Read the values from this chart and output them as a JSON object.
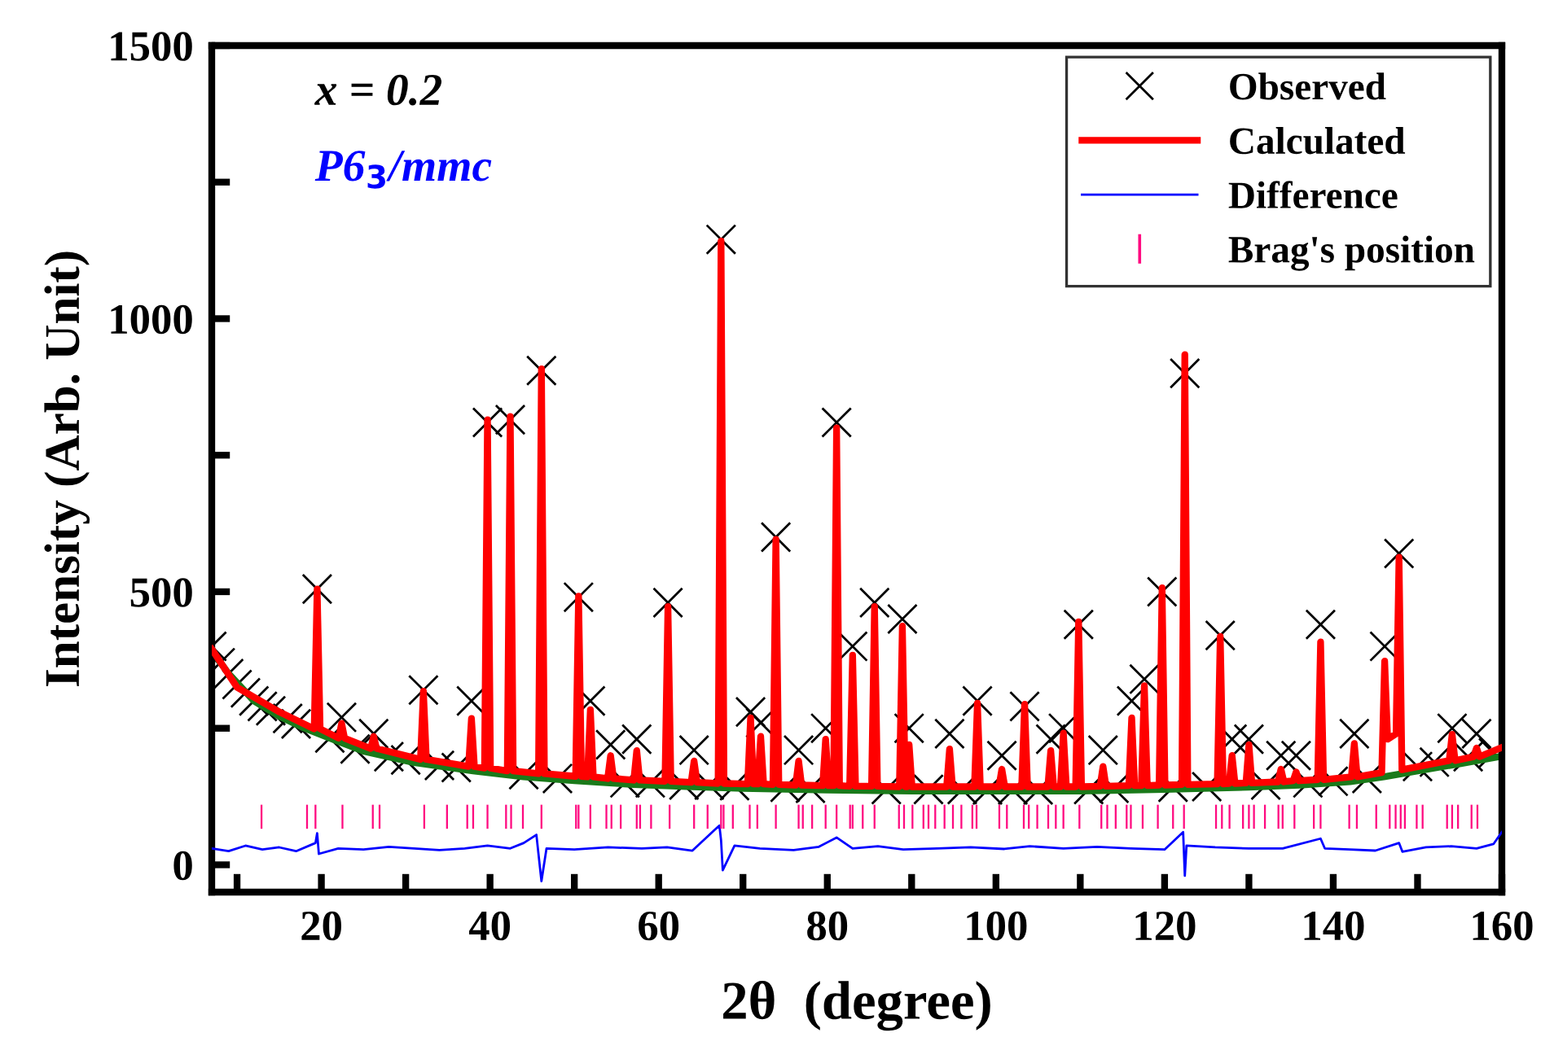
{
  "chart_data": {
    "type": "line",
    "xlabel": "2θ  (degree)",
    "ylabel": "Intensity (Arb. Unit)",
    "annotations": [
      "x = 0.2",
      "P6$_{3}$/mmc"
    ],
    "xlim": [
      7,
      160
    ],
    "ylim": [
      -50,
      1500
    ],
    "xticks": [
      {
        "value": 10,
        "label": null
      },
      20,
      {
        "value": 30,
        "label": null
      },
      40,
      {
        "value": 50,
        "label": null
      },
      60,
      {
        "value": 70,
        "label": null
      },
      80,
      {
        "value": 90,
        "label": null
      },
      100,
      {
        "value": 110,
        "label": null
      },
      120,
      {
        "value": 130,
        "label": null
      },
      140,
      {
        "value": 150,
        "label": null
      },
      160
    ],
    "yticks": [
      0,
      {
        "value": 250,
        "label": null
      },
      500,
      {
        "value": 750,
        "label": null
      },
      1000,
      {
        "value": 1250,
        "label": null
      },
      1500
    ],
    "legend": "top right",
    "grid": false,
    "series": [
      {
        "name": "Observed",
        "type": "scatter",
        "marker": "cross",
        "color": "#000000",
        "x": [
          7,
          8,
          9,
          10,
          11,
          12,
          13,
          14,
          16,
          17,
          19.5,
          21,
          22.4,
          24,
          26.2,
          28,
          30,
          32.1,
          34,
          36,
          37.8,
          39.7,
          42.4,
          44,
          46.1,
          48,
          50.5,
          51.9,
          54.3,
          56,
          57.4,
          59,
          61.1,
          63,
          64.2,
          66,
          67.4,
          69,
          70.9,
          72.1,
          73.9,
          75,
          76.6,
          78,
          79.8,
          81.1,
          83.0,
          85.6,
          87,
          88.9,
          89.7,
          92,
          94.5,
          96,
          97.8,
          99,
          100.7,
          102,
          103.4,
          105,
          106.5,
          108.0,
          109.8,
          111,
          112.7,
          114,
          116.1,
          117.6,
          119.7,
          121,
          122.4,
          125,
          126.6,
          128.0,
          130.0,
          132,
          133.8,
          135.6,
          137,
          138.5,
          140,
          142.5,
          144,
          146.1,
          147.8,
          150,
          152,
          154.1,
          156,
          157.0,
          159
        ],
        "values": [
          400,
          370,
          350,
          330,
          315,
          300,
          290,
          282,
          268,
          258,
          505,
          232,
          270,
          212,
          240,
          198,
          192,
          320,
          182,
          178,
          300,
          810,
          815,
          165,
          905,
          158,
          490,
          300,
          220,
          150,
          230,
          150,
          480,
          146,
          210,
          146,
          1145,
          145,
          280,
          260,
          600,
          142,
          210,
          140,
          250,
          810,
          400,
          480,
          138,
          450,
          250,
          138,
          240,
          138,
          300,
          137,
          200,
          137,
          290,
          137,
          230,
          250,
          440,
          138,
          210,
          140,
          300,
          340,
          500,
          142,
          900,
          143,
          420,
          230,
          230,
          146,
          200,
          200,
          150,
          440,
          153,
          240,
          158,
          400,
          570,
          180,
          188,
          250,
          198,
          240,
          205
        ]
      },
      {
        "name": "Calculated",
        "color": "#ff0000",
        "x": [
          7,
          10,
          15,
          19.15,
          19.5,
          19.85,
          22.05,
          22.4,
          22.75,
          25.85,
          26.2,
          26.55,
          31.75,
          32.1,
          32.45,
          37.45,
          37.8,
          38.15,
          39.35,
          39.7,
          40.05,
          42.05,
          42.4,
          42.75,
          45.75,
          46.1,
          46.45,
          50.15,
          50.5,
          50.85,
          51.55,
          51.9,
          52.25,
          53.95,
          54.3,
          54.65,
          57.05,
          57.4,
          57.75,
          60.75,
          61.1,
          61.45,
          63.85,
          64.2,
          64.55,
          67.05,
          67.4,
          67.75,
          70.55,
          70.9,
          71.25,
          71.75,
          72.1,
          72.45,
          73.55,
          73.9,
          74.25,
          76.25,
          76.6,
          76.95,
          79.45,
          79.8,
          80.15,
          80.75,
          81.1,
          81.45,
          82.65,
          83.0,
          83.35,
          85.25,
          85.6,
          85.95,
          88.55,
          88.9,
          89.25,
          89.45,
          89.7,
          90.05,
          94.15,
          94.5,
          94.85,
          97.45,
          97.8,
          98.15,
          100.35,
          100.7,
          101.05,
          103.05,
          103.4,
          103.75,
          106.15,
          106.5,
          106.85,
          107.65,
          108.0,
          108.35,
          109.45,
          109.8,
          110.15,
          112.35,
          112.7,
          113.05,
          115.75,
          116.1,
          116.45,
          117.25,
          117.6,
          117.95,
          119.35,
          119.7,
          120.05,
          122.05,
          122.4,
          122.75,
          126.25,
          126.6,
          126.95,
          127.65,
          128.0,
          128.35,
          129.65,
          130.0,
          130.35,
          133.45,
          133.8,
          134.15,
          135.25,
          135.6,
          135.95,
          138.15,
          138.5,
          138.85,
          142.15,
          142.5,
          142.85,
          145.75,
          146.1,
          146.45,
          147.45,
          147.8,
          148.15,
          153.75,
          154.1,
          154.45,
          156.65,
          157.0,
          157.35,
          160
        ],
        "values": [
          395,
          325,
          280,
          249,
          505,
          249,
          232,
          259,
          232,
          213,
          235,
          213,
          193,
          318,
          193,
          180,
          268,
          180,
          177,
          815,
          177,
          172,
          821,
          172,
          167,
          908,
          167,
          162,
          492,
          162,
          161,
          284,
          161,
          158,
          200,
          158,
          155,
          209,
          155,
          153,
          473,
          153,
          151,
          190,
          151,
          149,
          1142,
          149,
          148,
          269,
          148,
          148,
          235,
          148,
          147,
          596,
          147,
          146,
          190,
          146,
          145,
          230,
          145,
          145,
          800,
          145,
          144,
          384,
          144,
          144,
          473,
          144,
          143,
          437,
          143,
          143,
          220,
          143,
          143,
          212,
          143,
          143,
          296,
          143,
          143,
          175,
          143,
          143,
          294,
          143,
          143,
          209,
          143,
          143,
          241,
          143,
          143,
          445,
          143,
          144,
          180,
          144,
          145,
          269,
          145,
          145,
          328,
          145,
          146,
          507,
          146,
          147,
          934,
          147,
          148,
          418,
          148,
          149,
          200,
          149,
          150,
          220,
          150,
          152,
          175,
          152,
          154,
          170,
          154,
          156,
          408,
          156,
          161,
          222,
          161,
          169,
          373,
          230,
          240,
          563,
          174,
          191,
          239,
          191,
          198,
          214,
          198,
          215
        ]
      },
      {
        "name": "Difference",
        "color": "#0000ff",
        "x": [
          7,
          9,
          11,
          13,
          15,
          17,
          19.3,
          19.5,
          19.7,
          22,
          25,
          28,
          31,
          34,
          37,
          39.7,
          42.4,
          44,
          45.5,
          46.1,
          46.7,
          50,
          54,
          58,
          61,
          64,
          67.2,
          67.4,
          67.6,
          69,
          72,
          76,
          79,
          81.1,
          83,
          86,
          89,
          93,
          97,
          101,
          104,
          108,
          112,
          116,
          120,
          122.2,
          122.4,
          122.6,
          126,
          130,
          134,
          138.5,
          139,
          142,
          145,
          147.8,
          148.2,
          151,
          154,
          157,
          159,
          160
        ],
        "values": [
          30,
          25,
          35,
          28,
          32,
          25,
          40,
          58,
          20,
          30,
          28,
          33,
          30,
          27,
          30,
          35,
          30,
          40,
          55,
          -30,
          30,
          28,
          32,
          30,
          32,
          26,
          72,
          45,
          -10,
          35,
          30,
          27,
          33,
          50,
          30,
          34,
          28,
          30,
          32,
          29,
          34,
          30,
          33,
          30,
          28,
          60,
          -20,
          35,
          32,
          30,
          30,
          48,
          30,
          28,
          26,
          40,
          24,
          32,
          34,
          30,
          38,
          60
        ]
      },
      {
        "name": "Brag's position",
        "type": "bar",
        "color": "#ff0a80",
        "base": [
          66,
          66,
          66,
          66,
          66,
          66,
          66,
          66,
          66,
          66,
          66,
          66,
          66,
          66,
          66,
          66,
          66,
          66,
          66,
          66,
          66,
          66,
          66,
          66,
          66,
          66,
          66,
          66,
          66,
          66,
          66,
          66,
          66,
          66,
          66,
          66,
          66,
          66,
          66,
          66,
          66,
          66,
          66,
          66,
          66,
          66,
          66,
          66,
          66,
          66,
          66,
          66,
          66,
          66,
          66,
          66,
          66,
          66,
          66,
          66,
          66,
          66,
          66,
          66,
          66,
          66,
          66,
          66,
          66,
          66,
          66,
          66,
          66,
          66,
          66,
          66,
          66,
          66,
          66,
          66,
          66,
          66,
          66,
          66,
          66,
          66,
          66,
          66,
          66,
          66,
          66,
          66,
          66,
          66,
          66,
          66,
          66
        ],
        "x": [
          12.9,
          18.3,
          19.3,
          22.5,
          26.1,
          26.9,
          32.2,
          34.9,
          37.3,
          38.0,
          39.7,
          41.9,
          42.5,
          43.9,
          46.1,
          50.2,
          50.5,
          51.9,
          53.8,
          54.4,
          55.5,
          57.4,
          57.8,
          59.1,
          61.3,
          64.2,
          65.8,
          67.4,
          67.7,
          68.8,
          70.8,
          71.7,
          73.9,
          76.6,
          77.1,
          78.2,
          79.8,
          81.1,
          82.7,
          83.0,
          84.2,
          85.6,
          88.5,
          89.1,
          90.1,
          91.4,
          92.0,
          92.8,
          93.9,
          94.9,
          95.9,
          97.2,
          97.7,
          100.4,
          101.3,
          103.3,
          103.9,
          104.9,
          106.2,
          107.1,
          108.0,
          109.9,
          112.5,
          113.2,
          114.2,
          115.5,
          116.0,
          117.4,
          119.2,
          121.0,
          122.3,
          126.1,
          126.8,
          127.7,
          129.3,
          130.0,
          130.6,
          131.9,
          133.5,
          134.0,
          135.4,
          137.7,
          138.5,
          141.9,
          142.8,
          145.1,
          146.7,
          147.4,
          148.0,
          148.5,
          149.9,
          150.6,
          153.5,
          154.1,
          154.8,
          156.4,
          157.1
        ],
        "values": [
          44,
          44,
          44,
          44,
          44,
          44,
          44,
          44,
          44,
          44,
          44,
          44,
          44,
          44,
          44,
          44,
          44,
          44,
          44,
          44,
          44,
          44,
          44,
          44,
          44,
          44,
          44,
          44,
          44,
          44,
          44,
          44,
          44,
          44,
          44,
          44,
          44,
          44,
          44,
          44,
          44,
          44,
          44,
          44,
          44,
          44,
          44,
          44,
          44,
          44,
          44,
          44,
          44,
          44,
          44,
          44,
          44,
          44,
          44,
          44,
          44,
          44,
          44,
          44,
          44,
          44,
          44,
          44,
          44,
          44,
          44,
          44,
          44,
          44,
          44,
          44,
          44,
          44,
          44,
          44,
          44,
          44,
          44,
          44,
          44,
          44,
          44,
          44,
          44,
          44,
          44,
          44,
          44,
          44,
          44,
          44,
          44
        ]
      },
      {
        "color": "#1a7a1a",
        "x": [
          7,
          9,
          12,
          15,
          18,
          21,
          25,
          31,
          38,
          44,
          50,
          57,
          64,
          70,
          80,
          90,
          100,
          110,
          120,
          130,
          136,
          142,
          146,
          150,
          155,
          160
        ],
        "values": [
          392,
          350,
          300,
          272,
          250,
          232,
          208,
          187,
          172,
          161,
          154,
          147,
          143,
          140,
          137,
          135,
          135,
          135,
          138,
          142,
          146,
          152,
          161,
          172,
          185,
          199
        ]
      }
    ]
  }
}
